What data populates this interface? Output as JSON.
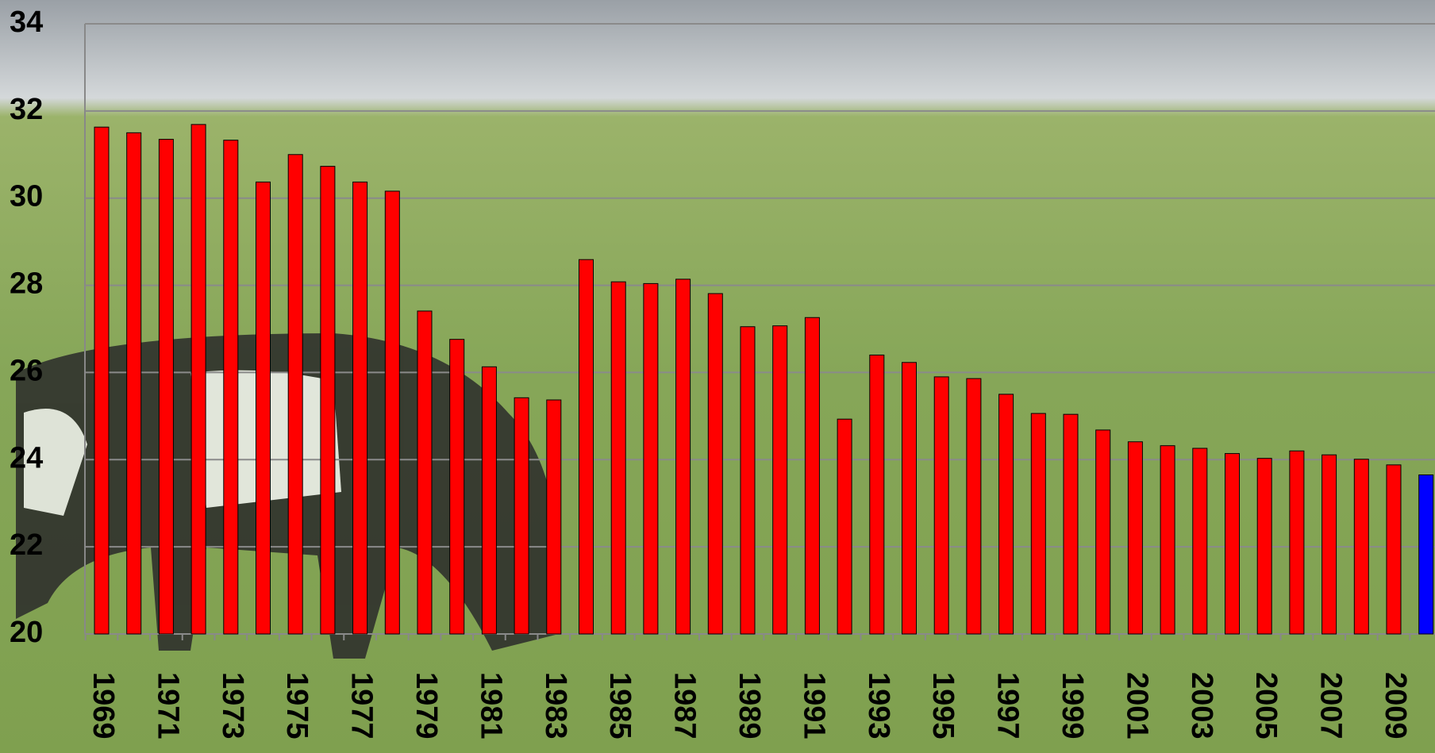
{
  "chart_data": {
    "type": "bar",
    "categories": [
      "1969",
      null,
      "1971",
      null,
      "1973",
      null,
      "1975",
      null,
      "1977",
      null,
      "1979",
      null,
      "1981",
      null,
      "1983",
      null,
      "1985",
      null,
      "1987",
      null,
      "1989",
      null,
      "1991",
      null,
      "1993",
      null,
      "1995",
      null,
      "1997",
      null,
      "1999",
      null,
      "2001",
      null,
      "2003",
      null,
      "2005",
      null,
      "2007",
      null,
      "2009",
      null
    ],
    "values": [
      31.63,
      31.5,
      31.35,
      31.69,
      31.33,
      30.37,
      31.0,
      30.73,
      30.37,
      30.16,
      27.41,
      26.76,
      26.13,
      25.42,
      25.37,
      28.59,
      28.08,
      28.04,
      28.14,
      27.81,
      27.05,
      27.07,
      27.26,
      24.93,
      26.4,
      26.23,
      25.9,
      25.86,
      25.5,
      25.06,
      25.04,
      24.68,
      24.41,
      24.32,
      24.26,
      24.14,
      24.03,
      24.2,
      24.11,
      24.01,
      23.88,
      23.65
    ],
    "colors": [
      "#ff0000",
      "#ff0000",
      "#ff0000",
      "#ff0000",
      "#ff0000",
      "#ff0000",
      "#ff0000",
      "#ff0000",
      "#ff0000",
      "#ff0000",
      "#ff0000",
      "#ff0000",
      "#ff0000",
      "#ff0000",
      "#ff0000",
      "#ff0000",
      "#ff0000",
      "#ff0000",
      "#ff0000",
      "#ff0000",
      "#ff0000",
      "#ff0000",
      "#ff0000",
      "#ff0000",
      "#ff0000",
      "#ff0000",
      "#ff0000",
      "#ff0000",
      "#ff0000",
      "#ff0000",
      "#ff0000",
      "#ff0000",
      "#ff0000",
      "#ff0000",
      "#ff0000",
      "#ff0000",
      "#ff0000",
      "#ff0000",
      "#ff0000",
      "#ff0000",
      "#ff0000",
      "#0000ff"
    ],
    "ylim": [
      20,
      34
    ],
    "yticks": [
      20,
      22,
      24,
      26,
      28,
      30,
      32,
      34
    ],
    "grid": true
  }
}
